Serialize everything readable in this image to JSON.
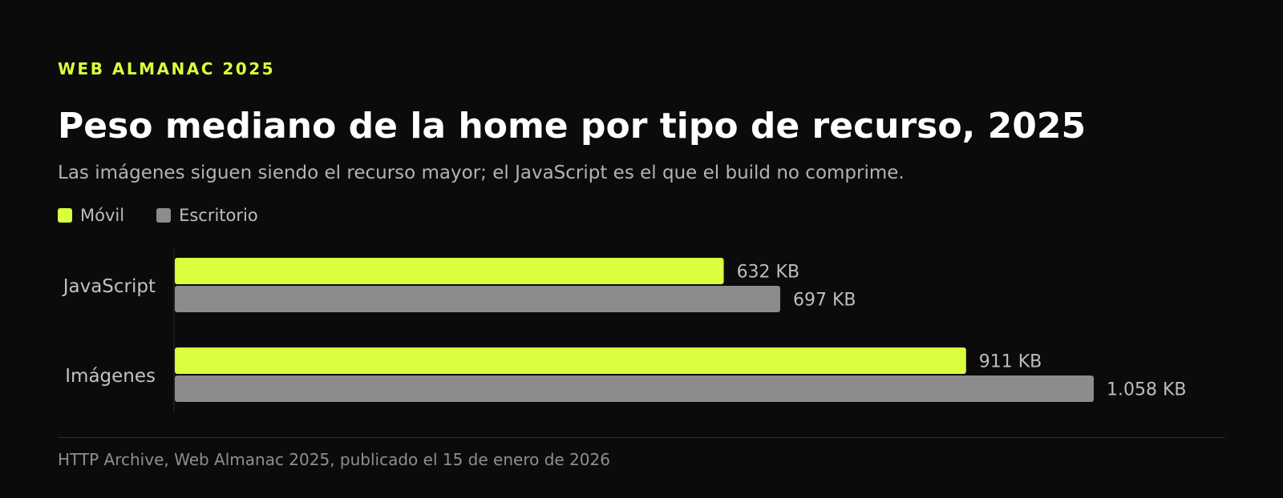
{
  "eyebrow": "WEB ALMANAC 2025",
  "title": "Peso mediano de la home por tipo de recurso, 2025",
  "subtitle": "Las imágenes siguen siendo el recurso mayor; el JavaScript es el que el build no comprime.",
  "source": "HTTP Archive, Web Almanac 2025, publicado el 15 de enero de 2026",
  "colors": {
    "background": "#0b0b0b",
    "movil": "#d9ff3f",
    "escritorio": "#8c8c8c"
  },
  "chart_data": {
    "type": "bar",
    "orientation": "horizontal",
    "categories": [
      "JavaScript",
      "Imágenes"
    ],
    "series": [
      {
        "name": "Móvil",
        "color": "#d9ff3f",
        "values": [
          632,
          911
        ],
        "labels": [
          "632 KB",
          "911 KB"
        ]
      },
      {
        "name": "Escritorio",
        "color": "#8c8c8c",
        "values": [
          697,
          1058
        ],
        "labels": [
          "697 KB",
          "1.058 KB"
        ]
      }
    ],
    "unit": "KB",
    "xlim": [
      0,
      1058
    ],
    "grid": false,
    "legend_position": "top-left"
  }
}
